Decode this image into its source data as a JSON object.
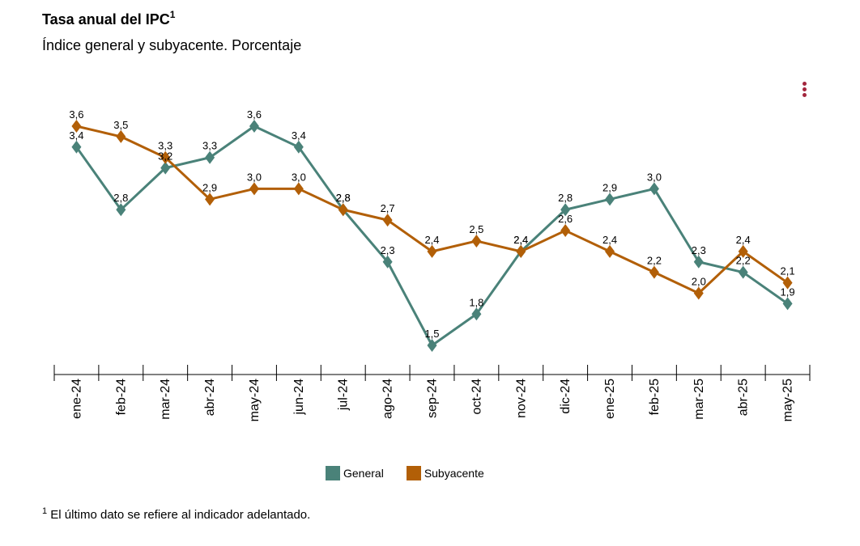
{
  "header": {
    "title": "Tasa anual del IPC",
    "title_sup": "1",
    "subtitle": "Índice general y subyacente. Porcentaje"
  },
  "menu": {
    "icon": "kebab-menu-icon"
  },
  "colors": {
    "general": "#4a8279",
    "subyacente": "#b25f07",
    "menu": "#a3263d"
  },
  "chart_data": {
    "type": "line",
    "categories": [
      "ene-24",
      "feb-24",
      "mar-24",
      "abr-24",
      "may-24",
      "jun-24",
      "jul-24",
      "ago-24",
      "sep-24",
      "oct-24",
      "nov-24",
      "dic-24",
      "ene-25",
      "feb-25",
      "mar-25",
      "abr-25",
      "may-25"
    ],
    "series": [
      {
        "name": "General",
        "values": [
          3.4,
          2.8,
          3.2,
          3.3,
          3.6,
          3.4,
          2.8,
          2.3,
          1.5,
          1.8,
          2.4,
          2.8,
          2.9,
          3.0,
          2.3,
          2.2,
          1.9
        ],
        "labels": [
          "3,4",
          "2,8",
          "3,2",
          "3,3",
          "3,6",
          "3,4",
          "2,8",
          "2,3",
          "1,5",
          "1,8",
          "2,4",
          "2,8",
          "2,9",
          "3,0",
          "2,3",
          "2,2",
          "1,9"
        ]
      },
      {
        "name": "Subyacente",
        "values": [
          3.6,
          3.5,
          3.3,
          2.9,
          3.0,
          3.0,
          2.8,
          2.7,
          2.4,
          2.5,
          2.4,
          2.6,
          2.4,
          2.2,
          2.0,
          2.4,
          2.1
        ],
        "labels": [
          "3,6",
          "3,5",
          "3,3",
          "2,9",
          "3,0",
          "3,0",
          "2,8",
          "2,7",
          "2,4",
          "2,5",
          "2,4",
          "2,6",
          "2,4",
          "2,2",
          "2,0",
          "2,4",
          "2,1"
        ]
      }
    ],
    "title": "Tasa anual del IPC",
    "xlabel": "",
    "ylabel": "",
    "ylim": [
      1.0,
      4.0
    ],
    "grid": false,
    "legend": "bottom-center"
  },
  "legend": {
    "general_label": "General",
    "subyacente_label": "Subyacente"
  },
  "footnote": {
    "sup": "1",
    "text": " El último dato se refiere al indicador adelantado."
  }
}
